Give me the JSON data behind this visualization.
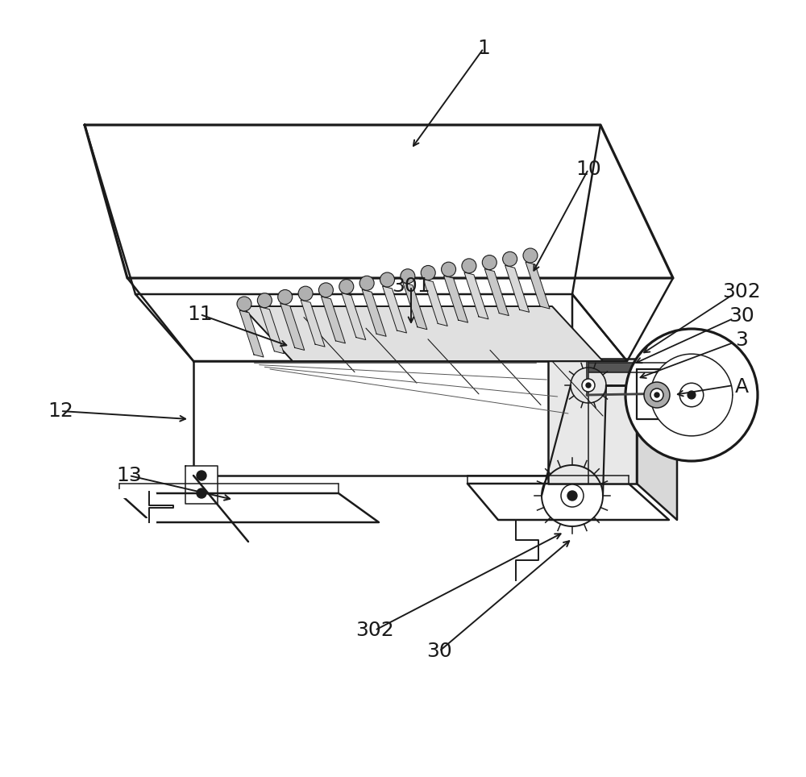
{
  "bg_color": "#ffffff",
  "line_color": "#1a1a1a",
  "lw_main": 1.8,
  "lw_thin": 1.1,
  "fig_width": 10.0,
  "fig_height": 9.64,
  "label_fontsize": 18
}
